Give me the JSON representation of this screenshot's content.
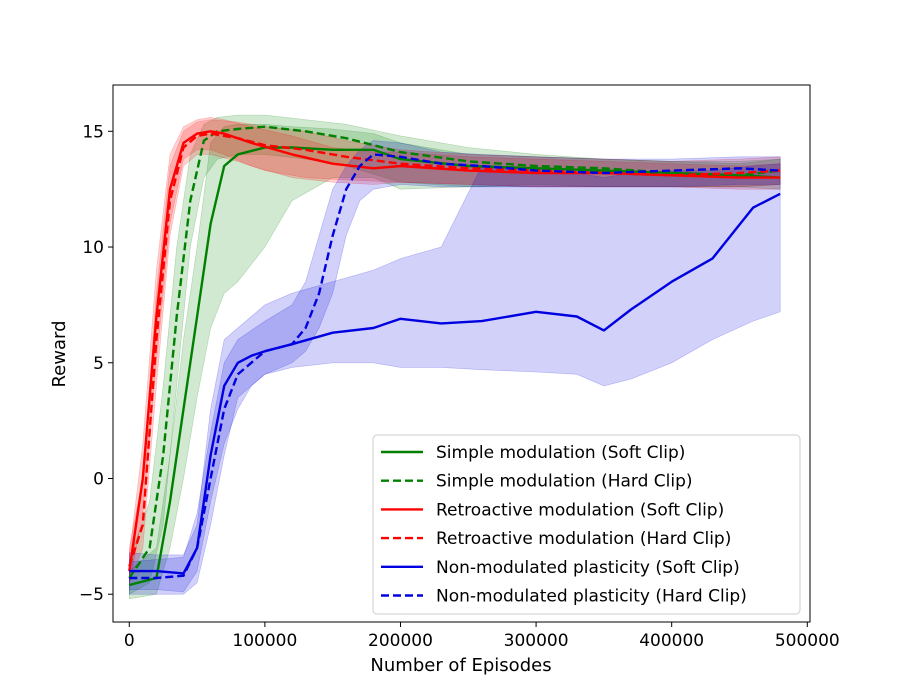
{
  "chart_data": {
    "type": "line",
    "xlabel": "Number of Episodes",
    "ylabel": "Reward",
    "xlim": [
      -12000,
      502000
    ],
    "ylim": [
      -6.2,
      17.0
    ],
    "xticks": [
      0,
      100000,
      200000,
      300000,
      400000,
      500000
    ],
    "xtick_labels": [
      "0",
      "100000",
      "200000",
      "300000",
      "400000",
      "500000"
    ],
    "yticks": [
      -5,
      0,
      5,
      10,
      15
    ],
    "ytick_labels": [
      "−5",
      "0",
      "5",
      "10",
      "15"
    ],
    "grid": false,
    "legend_position": "lower-right",
    "series": [
      {
        "name": "Simple modulation (Soft Clip)",
        "color": "#008000",
        "style": "solid",
        "x": [
          0,
          20000,
          30000,
          40000,
          50000,
          60000,
          70000,
          80000,
          100000,
          120000,
          150000,
          180000,
          200000,
          250000,
          300000,
          350000,
          400000,
          450000,
          480000
        ],
        "y": [
          -4.6,
          -4.3,
          -1.0,
          3.0,
          7.0,
          11.0,
          13.5,
          14.0,
          14.3,
          14.3,
          14.2,
          14.2,
          13.8,
          13.5,
          13.4,
          13.3,
          13.2,
          13.1,
          13.0
        ],
        "lower": [
          -5.2,
          -5.0,
          -3.0,
          0.0,
          3.5,
          6.5,
          8.0,
          8.5,
          10.0,
          12.0,
          13.0,
          13.0,
          12.5,
          12.6,
          12.6,
          12.6,
          12.6,
          12.6,
          12.5
        ],
        "upper": [
          -4.0,
          -3.0,
          1.0,
          6.0,
          10.0,
          14.5,
          15.2,
          15.3,
          15.3,
          15.2,
          15.1,
          14.9,
          14.5,
          14.0,
          13.9,
          13.8,
          13.7,
          13.7,
          13.8
        ]
      },
      {
        "name": "Simple modulation (Hard Clip)",
        "color": "#008000",
        "style": "dashed",
        "x": [
          0,
          15000,
          25000,
          35000,
          45000,
          55000,
          65000,
          80000,
          100000,
          130000,
          160000,
          200000,
          250000,
          300000,
          350000,
          400000,
          450000,
          480000
        ],
        "y": [
          -4.3,
          -3.0,
          1.0,
          7.0,
          12.0,
          14.6,
          15.0,
          15.1,
          15.2,
          15.0,
          14.7,
          14.1,
          13.7,
          13.5,
          13.4,
          13.2,
          13.1,
          13.3
        ],
        "lower": [
          -5.0,
          -4.5,
          -2.0,
          4.0,
          10.0,
          13.0,
          13.8,
          14.0,
          14.0,
          13.8,
          13.5,
          12.8,
          12.6,
          12.7,
          12.6,
          12.6,
          12.6,
          12.7
        ],
        "upper": [
          -3.5,
          -1.0,
          4.0,
          10.0,
          14.0,
          15.3,
          15.6,
          15.7,
          15.7,
          15.5,
          15.3,
          14.8,
          14.3,
          14.0,
          13.8,
          13.7,
          13.6,
          13.8
        ]
      },
      {
        "name": "Retroactive modulation (Soft Clip)",
        "color": "#ff0000",
        "style": "solid",
        "x": [
          0,
          10000,
          20000,
          30000,
          40000,
          50000,
          60000,
          70000,
          90000,
          120000,
          150000,
          180000,
          200000,
          250000,
          300000,
          350000,
          400000,
          450000,
          480000
        ],
        "y": [
          -4.0,
          0.0,
          7.0,
          12.5,
          14.5,
          14.9,
          15.0,
          14.9,
          14.5,
          14.0,
          13.6,
          13.4,
          13.5,
          13.3,
          13.2,
          13.2,
          13.1,
          13.0,
          13.0
        ],
        "lower": [
          -4.6,
          -1.5,
          5.0,
          11.0,
          13.8,
          14.2,
          14.2,
          14.0,
          13.5,
          13.0,
          12.8,
          12.7,
          12.8,
          12.7,
          12.6,
          12.6,
          12.6,
          12.5,
          12.5
        ],
        "upper": [
          -3.3,
          1.5,
          9.0,
          14.0,
          15.2,
          15.5,
          15.6,
          15.5,
          15.2,
          14.8,
          14.3,
          14.1,
          14.1,
          13.9,
          13.8,
          13.7,
          13.6,
          13.5,
          13.6
        ]
      },
      {
        "name": "Retroactive modulation (Hard Clip)",
        "color": "#ff0000",
        "style": "dashed",
        "x": [
          0,
          10000,
          20000,
          30000,
          40000,
          50000,
          60000,
          80000,
          100000,
          130000,
          160000,
          200000,
          250000,
          300000,
          350000,
          400000,
          450000,
          480000
        ],
        "y": [
          -3.8,
          -2.0,
          6.0,
          12.0,
          14.3,
          14.8,
          14.9,
          14.7,
          14.4,
          14.2,
          13.9,
          13.6,
          13.4,
          13.3,
          13.2,
          13.1,
          13.2,
          13.3
        ],
        "lower": [
          -4.5,
          -3.0,
          4.0,
          10.5,
          13.5,
          14.0,
          14.0,
          13.7,
          13.3,
          13.0,
          12.9,
          12.8,
          12.7,
          12.6,
          12.6,
          12.6,
          12.6,
          12.7
        ],
        "upper": [
          -3.0,
          0.0,
          8.0,
          13.5,
          15.0,
          15.4,
          15.5,
          15.4,
          15.2,
          15.0,
          14.6,
          14.2,
          14.0,
          13.9,
          13.8,
          13.7,
          13.8,
          13.9
        ]
      },
      {
        "name": "Non-modulated plasticity (Soft Clip)",
        "color": "#0000e0",
        "style": "solid",
        "x": [
          0,
          20000,
          40000,
          50000,
          60000,
          70000,
          80000,
          90000,
          100000,
          120000,
          150000,
          180000,
          200000,
          230000,
          260000,
          300000,
          330000,
          350000,
          370000,
          400000,
          430000,
          460000,
          480000
        ],
        "y": [
          -4.0,
          -4.0,
          -4.1,
          -3.0,
          1.0,
          4.0,
          5.0,
          5.3,
          5.5,
          5.8,
          6.3,
          6.5,
          6.9,
          6.7,
          6.8,
          7.2,
          7.0,
          6.4,
          7.3,
          8.5,
          9.5,
          11.7,
          12.3
        ],
        "lower": [
          -4.8,
          -4.8,
          -4.9,
          -4.0,
          -1.0,
          1.5,
          3.0,
          4.0,
          4.5,
          4.8,
          5.0,
          5.0,
          4.8,
          4.8,
          4.7,
          4.6,
          4.5,
          4.0,
          4.3,
          5.0,
          6.0,
          6.8,
          7.2
        ],
        "upper": [
          -3.2,
          -3.3,
          -3.3,
          -2.0,
          3.0,
          6.0,
          6.5,
          7.0,
          7.5,
          8.0,
          8.5,
          9.0,
          9.5,
          10.0,
          13.5,
          13.3,
          13.2,
          13.0,
          13.2,
          13.3,
          13.3,
          13.5,
          13.6
        ]
      },
      {
        "name": "Non-modulated plasticity (Hard Clip)",
        "color": "#0000e0",
        "style": "dashed",
        "x": [
          0,
          20000,
          40000,
          50000,
          60000,
          70000,
          80000,
          100000,
          120000,
          130000,
          140000,
          150000,
          160000,
          170000,
          180000,
          200000,
          230000,
          260000,
          300000,
          350000,
          400000,
          450000,
          480000
        ],
        "y": [
          -4.3,
          -4.3,
          -4.2,
          -3.0,
          0.0,
          3.0,
          4.5,
          5.5,
          5.8,
          6.5,
          8.0,
          10.5,
          12.5,
          13.5,
          14.0,
          13.9,
          13.6,
          13.5,
          13.3,
          13.2,
          13.3,
          13.4,
          13.3
        ],
        "lower": [
          -5.0,
          -5.0,
          -5.0,
          -4.5,
          -2.0,
          1.0,
          3.5,
          4.5,
          5.0,
          5.5,
          6.5,
          8.0,
          10.5,
          12.0,
          12.5,
          12.7,
          12.6,
          12.6,
          12.6,
          12.6,
          12.6,
          12.7,
          12.7
        ],
        "upper": [
          -3.6,
          -3.5,
          -3.4,
          -1.5,
          2.0,
          5.0,
          6.0,
          6.8,
          7.5,
          8.5,
          10.5,
          12.5,
          13.5,
          14.2,
          14.6,
          14.5,
          14.1,
          14.0,
          13.9,
          13.8,
          13.8,
          13.9,
          13.9
        ]
      }
    ]
  }
}
